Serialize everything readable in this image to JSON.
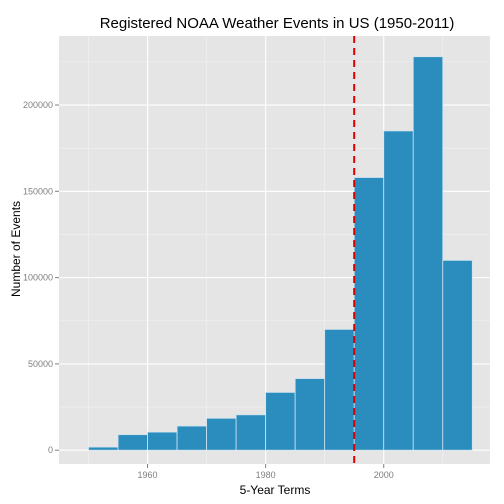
{
  "chart_data": {
    "type": "bar",
    "subtype": "histogram",
    "title": "Registered NOAA Weather Events in US (1950-2011)",
    "xlabel": "5-Year Terms",
    "ylabel": "Number of Events",
    "bins": [
      {
        "start": 1950,
        "end": 1955,
        "value": 1800
      },
      {
        "start": 1955,
        "end": 1960,
        "value": 9000
      },
      {
        "start": 1960,
        "end": 1965,
        "value": 10500
      },
      {
        "start": 1965,
        "end": 1970,
        "value": 14000
      },
      {
        "start": 1970,
        "end": 1975,
        "value": 18500
      },
      {
        "start": 1975,
        "end": 1980,
        "value": 20500
      },
      {
        "start": 1980,
        "end": 1985,
        "value": 33500
      },
      {
        "start": 1985,
        "end": 1990,
        "value": 41500
      },
      {
        "start": 1990,
        "end": 1995,
        "value": 70000
      },
      {
        "start": 1995,
        "end": 2000,
        "value": 158000
      },
      {
        "start": 2000,
        "end": 2005,
        "value": 185000
      },
      {
        "start": 2005,
        "end": 2010,
        "value": 228000
      },
      {
        "start": 2010,
        "end": 2015,
        "value": 110000
      }
    ],
    "xlim": [
      1945,
      2018
    ],
    "ylim": [
      -8000,
      240000
    ],
    "x_ticks": [
      1960,
      1980,
      2000
    ],
    "y_ticks": [
      0,
      50000,
      100000,
      150000,
      200000
    ],
    "reference_line": {
      "x": 1995,
      "color": "#dd0000",
      "style": "dashed"
    },
    "bar_color": "#2b8cbe",
    "bar_border_color": "#cfe3ef",
    "panel_background": "#e5e5e5",
    "grid": true,
    "legend": "none"
  }
}
